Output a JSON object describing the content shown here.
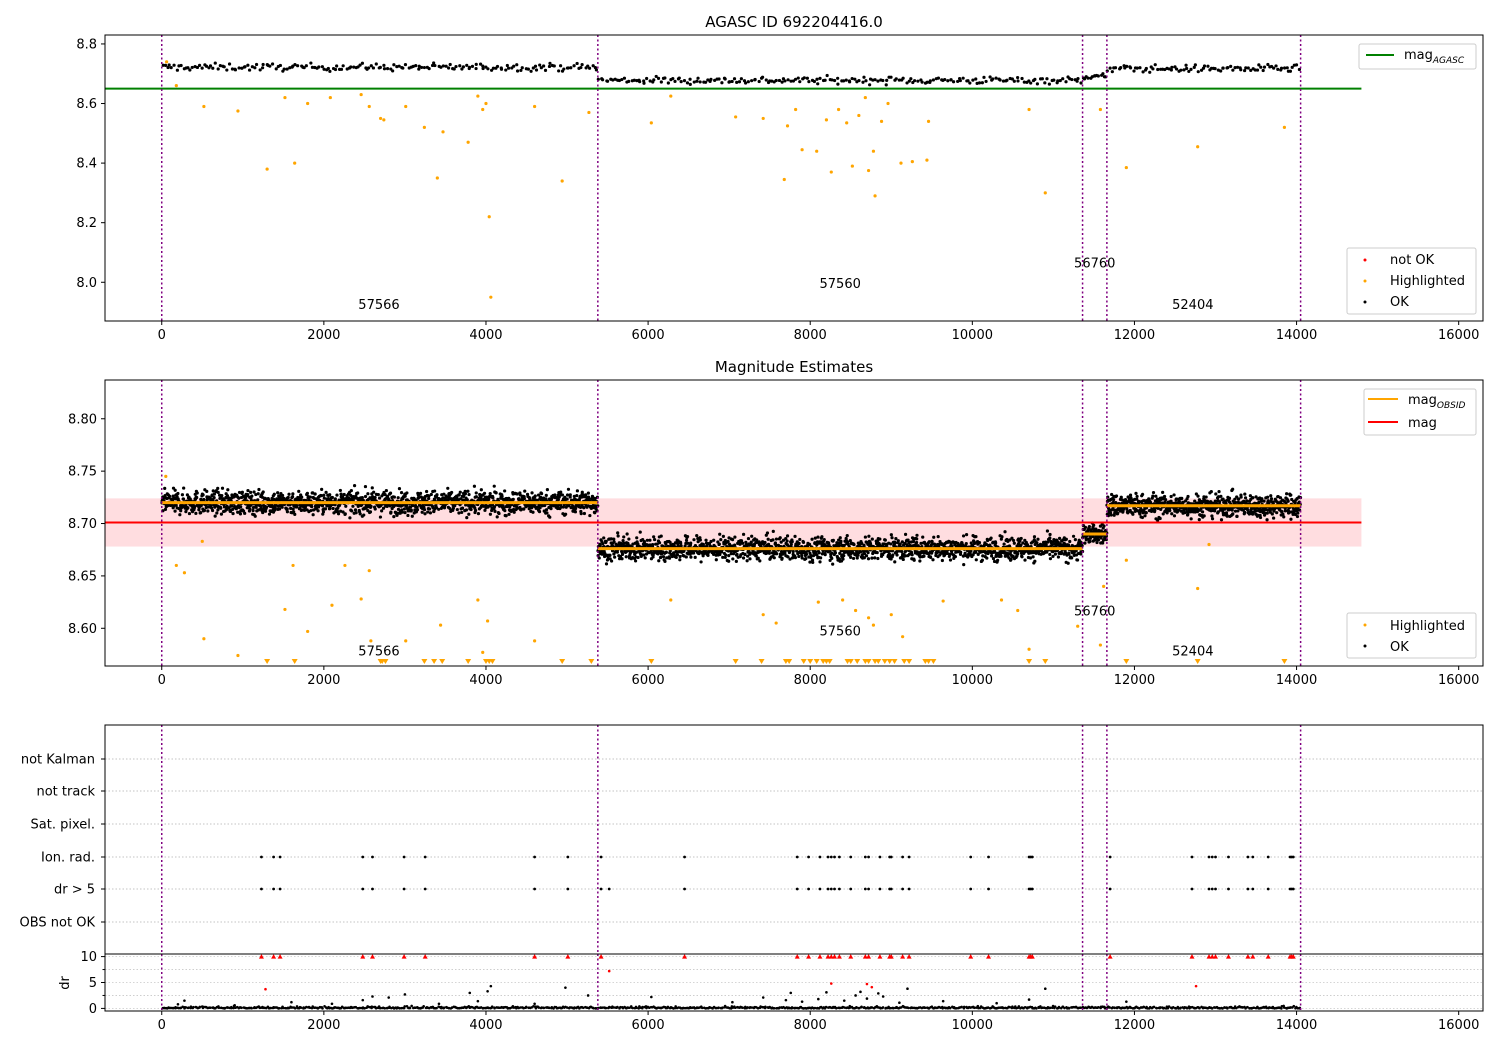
{
  "chart_data": [
    {
      "type": "scatter",
      "title": "AGASC ID 692204416.0",
      "xlim": [
        -700,
        16300
      ],
      "ylim": [
        7.87,
        8.83
      ],
      "xticks": [
        0,
        2000,
        4000,
        6000,
        8000,
        10000,
        12000,
        14000,
        16000
      ],
      "xtick_labels": [
        "0",
        "2000",
        "4000",
        "6000",
        "8000",
        "10000",
        "12000",
        "14000",
        "16000"
      ],
      "yticks": [
        8.0,
        8.2,
        8.4,
        8.6,
        8.8
      ],
      "ytick_labels": [
        "8.0",
        "8.2",
        "8.4",
        "8.6",
        "8.8"
      ],
      "vlines": [
        0,
        5380,
        11360,
        11660,
        14050
      ],
      "obsid_labels": [
        {
          "x": 2680,
          "y": 7.91,
          "text": "57566"
        },
        {
          "x": 8370,
          "y": 7.98,
          "text": "57560"
        },
        {
          "x": 11510,
          "y": 8.05,
          "text": "56760"
        },
        {
          "x": 12720,
          "y": 7.91,
          "text": "52404"
        }
      ],
      "hlines": [
        {
          "name": "mag_AGASC",
          "y": 8.65,
          "x": [
            -700,
            14800
          ],
          "color": "#008000"
        }
      ],
      "segments": [
        {
          "x": [
            0,
            5380
          ],
          "mean": 8.722,
          "spread": 0.012,
          "n": 190
        },
        {
          "x": [
            5380,
            11360
          ],
          "mean": 8.678,
          "spread": 0.012,
          "n": 210
        },
        {
          "x": [
            11360,
            11660
          ],
          "mean": 8.69,
          "spread": 0.01,
          "n": 14
        },
        {
          "x": [
            11660,
            14050
          ],
          "mean": 8.717,
          "spread": 0.012,
          "n": 90
        }
      ],
      "highlighted": [
        [
          60,
          8.74
        ],
        [
          180,
          8.66
        ],
        [
          520,
          8.59
        ],
        [
          940,
          8.575
        ],
        [
          1300,
          8.38
        ],
        [
          1520,
          8.62
        ],
        [
          1640,
          8.4
        ],
        [
          1800,
          8.6
        ],
        [
          2080,
          8.62
        ],
        [
          2460,
          8.63
        ],
        [
          2560,
          8.59
        ],
        [
          2700,
          8.55
        ],
        [
          2740,
          8.545
        ],
        [
          3010,
          8.59
        ],
        [
          3240,
          8.52
        ],
        [
          3400,
          8.35
        ],
        [
          3470,
          8.505
        ],
        [
          3780,
          8.47
        ],
        [
          3900,
          8.625
        ],
        [
          3960,
          8.58
        ],
        [
          4000,
          8.6
        ],
        [
          4040,
          8.22
        ],
        [
          4060,
          7.95
        ],
        [
          4600,
          8.59
        ],
        [
          4940,
          8.34
        ],
        [
          5270,
          8.57
        ],
        [
          6040,
          8.535
        ],
        [
          6280,
          8.625
        ],
        [
          7080,
          8.555
        ],
        [
          7420,
          8.55
        ],
        [
          7680,
          8.345
        ],
        [
          7720,
          8.525
        ],
        [
          7820,
          8.58
        ],
        [
          7900,
          8.445
        ],
        [
          8080,
          8.44
        ],
        [
          8200,
          8.545
        ],
        [
          8260,
          8.37
        ],
        [
          8350,
          8.58
        ],
        [
          8450,
          8.535
        ],
        [
          8520,
          8.39
        ],
        [
          8600,
          8.56
        ],
        [
          8680,
          8.62
        ],
        [
          8720,
          8.375
        ],
        [
          8780,
          8.44
        ],
        [
          8800,
          8.29
        ],
        [
          8880,
          8.54
        ],
        [
          8960,
          8.6
        ],
        [
          9120,
          8.4
        ],
        [
          9260,
          8.405
        ],
        [
          9440,
          8.41
        ],
        [
          9460,
          8.54
        ],
        [
          10700,
          8.58
        ],
        [
          10900,
          8.3
        ],
        [
          11580,
          8.58
        ],
        [
          11900,
          8.385
        ],
        [
          12780,
          8.455
        ],
        [
          13850,
          8.52
        ]
      ],
      "legend": {
        "position": "lower right",
        "entries": [
          "not OK",
          "Highlighted",
          "OK"
        ]
      },
      "legend_top": {
        "position": "upper right",
        "entries": [
          "mag_AGASC"
        ]
      }
    },
    {
      "type": "scatter",
      "title": "Magnitude Estimates",
      "xlim": [
        -700,
        16300
      ],
      "ylim": [
        8.564,
        8.837
      ],
      "xticks": [
        0,
        2000,
        4000,
        6000,
        8000,
        10000,
        12000,
        14000,
        16000
      ],
      "xtick_labels": [
        "0",
        "2000",
        "4000",
        "6000",
        "8000",
        "10000",
        "12000",
        "14000",
        "16000"
      ],
      "yticks": [
        8.6,
        8.65,
        8.7,
        8.75,
        8.8
      ],
      "ytick_labels": [
        "8.60",
        "8.65",
        "8.70",
        "8.75",
        "8.80"
      ],
      "vlines": [
        0,
        5380,
        11360,
        11660,
        14050
      ],
      "obsid_labels": [
        {
          "x": 2680,
          "y": 8.574,
          "text": "57566"
        },
        {
          "x": 8370,
          "y": 8.593,
          "text": "57560"
        },
        {
          "x": 11510,
          "y": 8.612,
          "text": "56760"
        },
        {
          "x": 12720,
          "y": 8.574,
          "text": "52404"
        }
      ],
      "mag": {
        "name": "mag",
        "value": 8.701,
        "band": [
          8.678,
          8.724
        ],
        "x": [
          -700,
          14800
        ],
        "color": "#ff0000"
      },
      "mag_obsid": [
        {
          "x": [
            0,
            5380
          ],
          "value": 8.72
        },
        {
          "x": [
            5380,
            11360
          ],
          "value": 8.676
        },
        {
          "x": [
            11360,
            11660
          ],
          "value": 8.69
        },
        {
          "x": [
            11660,
            14050
          ],
          "value": 8.717
        }
      ],
      "segments": [
        {
          "x": [
            0,
            5380
          ],
          "mean": 8.72,
          "spread": 0.011,
          "n": 1500
        },
        {
          "x": [
            5380,
            11360
          ],
          "mean": 8.676,
          "spread": 0.011,
          "n": 1700
        },
        {
          "x": [
            11360,
            11660
          ],
          "mean": 8.69,
          "spread": 0.009,
          "n": 90
        },
        {
          "x": [
            11660,
            14050
          ],
          "mean": 8.717,
          "spread": 0.011,
          "n": 700
        }
      ],
      "highlighted": [
        [
          50,
          8.745
        ],
        [
          180,
          8.66
        ],
        [
          280,
          8.653
        ],
        [
          520,
          8.59
        ],
        [
          500,
          8.683
        ],
        [
          940,
          8.574
        ],
        [
          1520,
          8.618
        ],
        [
          1620,
          8.66
        ],
        [
          1800,
          8.597
        ],
        [
          2100,
          8.622
        ],
        [
          2260,
          8.66
        ],
        [
          2460,
          8.628
        ],
        [
          2560,
          8.655
        ],
        [
          2580,
          8.588
        ],
        [
          3010,
          8.588
        ],
        [
          3440,
          8.603
        ],
        [
          3900,
          8.627
        ],
        [
          3960,
          8.577
        ],
        [
          4020,
          8.607
        ],
        [
          4600,
          8.588
        ],
        [
          6280,
          8.627
        ],
        [
          7420,
          8.613
        ],
        [
          7580,
          8.605
        ],
        [
          8100,
          8.625
        ],
        [
          8400,
          8.627
        ],
        [
          8560,
          8.617
        ],
        [
          8720,
          8.61
        ],
        [
          8780,
          8.603
        ],
        [
          9000,
          8.613
        ],
        [
          9140,
          8.592
        ],
        [
          9640,
          8.626
        ],
        [
          10360,
          8.627
        ],
        [
          10560,
          8.617
        ],
        [
          10700,
          8.58
        ],
        [
          11300,
          8.602
        ],
        [
          11580,
          8.584
        ],
        [
          11620,
          8.64
        ],
        [
          11900,
          8.665
        ],
        [
          12780,
          8.638
        ],
        [
          12920,
          8.68
        ]
      ],
      "below_axis_markers": [
        1300,
        1640,
        2700,
        2720,
        2760,
        3240,
        3360,
        3460,
        3780,
        4000,
        4040,
        4080,
        4940,
        5300,
        6040,
        7080,
        7400,
        7700,
        7740,
        7920,
        8000,
        8080,
        8160,
        8200,
        8240,
        8460,
        8500,
        8580,
        8680,
        8720,
        8800,
        8840,
        8920,
        8980,
        9040,
        9160,
        9220,
        9420,
        9460,
        9520,
        10700,
        10900,
        11900,
        12780,
        13850
      ],
      "legend": {
        "position": "lower right",
        "entries": [
          "Highlighted",
          "OK"
        ]
      },
      "legend_top": {
        "position": "upper right",
        "entries": [
          "mag_OBSID",
          "mag"
        ]
      }
    },
    {
      "type": "scatter",
      "title": "",
      "xlim": [
        -700,
        16300
      ],
      "categories": [
        "not Kalman",
        "not track",
        "Sat. pixel.",
        "Ion. rad.",
        "dr > 5",
        "OBS not OK"
      ],
      "vlines": [
        0,
        5380,
        11360,
        11660,
        14050
      ],
      "flags": {
        "Ion. rad.": [
          1230,
          1380,
          1460,
          2480,
          2600,
          2990,
          3250,
          4600,
          5010,
          5420,
          6450,
          7840,
          7980,
          8120,
          8220,
          8260,
          8300,
          8360,
          8500,
          8680,
          8720,
          8860,
          8980,
          9000,
          9140,
          9220,
          9980,
          10200,
          10700,
          10720,
          10740,
          11700,
          12710,
          12920,
          12960,
          13000,
          13160,
          13400,
          13460,
          13650,
          13920,
          13940,
          13960
        ],
        "dr > 5": [
          1230,
          1380,
          1460,
          2480,
          2600,
          2990,
          3250,
          4600,
          5010,
          5420,
          5520,
          6450,
          7840,
          7980,
          8120,
          8220,
          8260,
          8300,
          8360,
          8500,
          8680,
          8720,
          8860,
          8980,
          9000,
          9140,
          9220,
          9980,
          10200,
          10700,
          10720,
          10740,
          11700,
          12710,
          12920,
          12960,
          13000,
          13160,
          13400,
          13460,
          13650,
          13920,
          13940,
          13960
        ]
      }
    },
    {
      "type": "scatter",
      "title": "",
      "xlim": [
        -700,
        16300
      ],
      "ylim": [
        -0.5,
        10.5
      ],
      "ylabel": "dr",
      "xticks": [
        0,
        2000,
        4000,
        6000,
        8000,
        10000,
        12000,
        14000,
        16000
      ],
      "xtick_labels": [
        "0",
        "2000",
        "4000",
        "6000",
        "8000",
        "10000",
        "12000",
        "14000",
        "16000"
      ],
      "yticks": [
        0,
        5,
        10
      ],
      "ytick_labels": [
        "0",
        "5",
        "10"
      ],
      "vlines": [
        0,
        5380,
        11360,
        11660,
        14050
      ],
      "clipped_points": [
        1230,
        1380,
        1460,
        2480,
        2600,
        2990,
        3250,
        4600,
        5010,
        5420,
        6450,
        7840,
        7980,
        8120,
        8220,
        8260,
        8300,
        8360,
        8500,
        8680,
        8720,
        8860,
        8980,
        9000,
        9140,
        9220,
        9980,
        10200,
        10700,
        10720,
        10740,
        11700,
        12710,
        12920,
        12960,
        13000,
        13160,
        13400,
        13460,
        13650,
        13920,
        13940,
        13960
      ],
      "red_points": [
        [
          1280,
          3.7
        ],
        [
          5520,
          7.2
        ],
        [
          8260,
          4.8
        ],
        [
          8700,
          4.7
        ],
        [
          8760,
          4.1
        ],
        [
          12760,
          4.3
        ]
      ],
      "outliers": [
        [
          200,
          0.8
        ],
        [
          280,
          1.5
        ],
        [
          900,
          0.6
        ],
        [
          1600,
          1.2
        ],
        [
          2100,
          0.9
        ],
        [
          2480,
          1.6
        ],
        [
          2600,
          2.3
        ],
        [
          2800,
          2.1
        ],
        [
          3000,
          2.7
        ],
        [
          3420,
          0.9
        ],
        [
          3800,
          3.0
        ],
        [
          3900,
          1.4
        ],
        [
          4020,
          3.3
        ],
        [
          4060,
          4.3
        ],
        [
          4600,
          0.9
        ],
        [
          4980,
          4.0
        ],
        [
          5260,
          2.5
        ],
        [
          6040,
          2.2
        ],
        [
          7040,
          1.2
        ],
        [
          7420,
          2.1
        ],
        [
          7700,
          1.6
        ],
        [
          7760,
          3.0
        ],
        [
          7900,
          1.3
        ],
        [
          8100,
          1.8
        ],
        [
          8200,
          3.1
        ],
        [
          8420,
          1.5
        ],
        [
          8560,
          2.5
        ],
        [
          8620,
          3.2
        ],
        [
          8700,
          1.9
        ],
        [
          8840,
          2.9
        ],
        [
          8900,
          2.3
        ],
        [
          9100,
          1.1
        ],
        [
          9200,
          3.8
        ],
        [
          9640,
          1.4
        ],
        [
          10300,
          1.0
        ],
        [
          10700,
          1.7
        ],
        [
          10900,
          3.8
        ],
        [
          11900,
          1.3
        ]
      ]
    }
  ]
}
